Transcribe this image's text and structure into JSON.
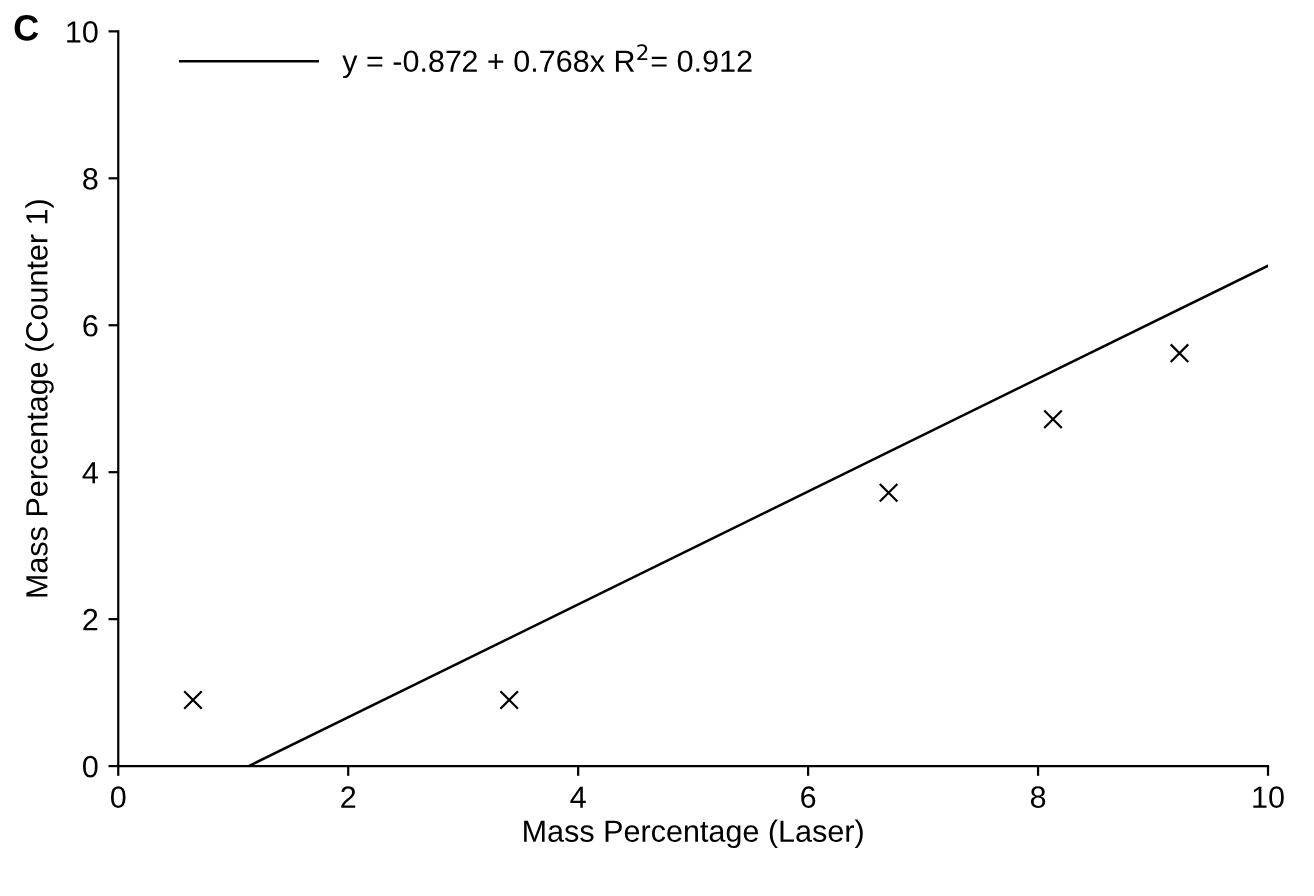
{
  "chart_data": {
    "type": "scatter",
    "xlabel": "Mass Percentage (Laser)",
    "ylabel": "Mass Percentage (Counter 1)",
    "annotations": [
      "C"
    ],
    "xlim": [
      0,
      10
    ],
    "ylim": [
      0,
      10
    ],
    "xticks": [
      0,
      2,
      4,
      6,
      8,
      10
    ],
    "yticks": [
      0,
      2,
      4,
      6,
      8,
      10
    ],
    "grid": false,
    "legend": "top left",
    "marker": "cross",
    "series": [
      {
        "color": "#000000",
        "x": [
          0.65,
          3.4,
          6.7,
          8.13,
          9.23
        ],
        "values": [
          0.9,
          0.9,
          3.72,
          4.72,
          5.62
        ]
      },
      {
        "type": "line",
        "name": "y = -0.872 + 0.768x R$^{2}$= 0.912",
        "color": "#000000",
        "line_style": "solid",
        "marker": "none",
        "x": [
          1.135,
          10
        ],
        "values": [
          0,
          6.81
        ]
      }
    ]
  }
}
